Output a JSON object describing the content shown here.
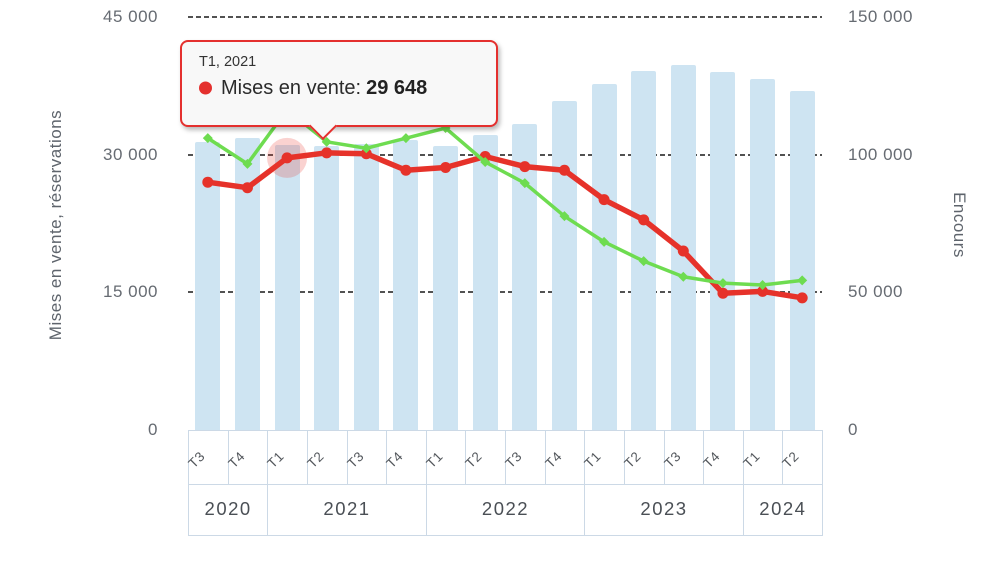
{
  "chart_data": {
    "type": "combo",
    "description": "Dual-axis quarterly chart: light-blue column series (Encours, right axis) with red and green line series (left axis)",
    "categories": [
      "T3",
      "T4",
      "T1",
      "T2",
      "T3",
      "T4",
      "T1",
      "T2",
      "T3",
      "T4",
      "T1",
      "T2",
      "T3",
      "T4",
      "T1",
      "T2"
    ],
    "year_groups": [
      {
        "label": "2020",
        "span": 2
      },
      {
        "label": "2021",
        "span": 4
      },
      {
        "label": "2022",
        "span": 4
      },
      {
        "label": "2023",
        "span": 4
      },
      {
        "label": "2024",
        "span": 2
      }
    ],
    "series": [
      {
        "name": "Encours",
        "type": "bar",
        "axis": "right",
        "values": [
          104500,
          106000,
          103500,
          103000,
          104000,
          105500,
          103000,
          107000,
          111000,
          119500,
          125500,
          130500,
          132500,
          130000,
          127500,
          123000
        ]
      },
      {
        "name": "Mises en vente",
        "type": "line",
        "axis": "left",
        "marker": "circle",
        "values": [
          27000,
          26400,
          29648,
          30200,
          30100,
          28300,
          28600,
          29800,
          28700,
          28300,
          25100,
          22900,
          19500,
          14900,
          15100,
          14400
        ]
      },
      {
        "name": "Réservations",
        "type": "line",
        "axis": "left",
        "marker": "diamond",
        "values": [
          31800,
          29000,
          34900,
          31400,
          30700,
          31800,
          32900,
          29200,
          26900,
          23300,
          20500,
          18400,
          16700,
          16000,
          15800,
          16300
        ]
      }
    ],
    "y_left": {
      "title": "Mises en vente, réservations",
      "max": 45000,
      "ticks": [
        {
          "label": "0",
          "value": 0
        },
        {
          "label": "15 000",
          "value": 15000
        },
        {
          "label": "30 000",
          "value": 30000
        },
        {
          "label": "45 000",
          "value": 45000
        }
      ]
    },
    "y_right": {
      "title": "Encours",
      "max": 150000,
      "ticks": [
        {
          "label": "0",
          "value": 0
        },
        {
          "label": "50 000",
          "value": 50000
        },
        {
          "label": "100 000",
          "value": 100000
        },
        {
          "label": "150 000",
          "value": 150000
        }
      ]
    },
    "tooltip": {
      "header": "T1, 2021",
      "series": "Mises en vente:",
      "value": "29 648"
    },
    "highlight_index": 2,
    "grid": "horizontal dashed",
    "legend": "none",
    "colors": {
      "bar": "#cee4f2",
      "red_line": "#e6322a",
      "green_line": "#6edc50",
      "halo": "rgba(230,50,42,0.22)",
      "grid": "#333333",
      "tooltip_border": "#e4302e",
      "tooltip_bg": "#f8f8f8",
      "table_border": "#ccd9e6"
    }
  }
}
